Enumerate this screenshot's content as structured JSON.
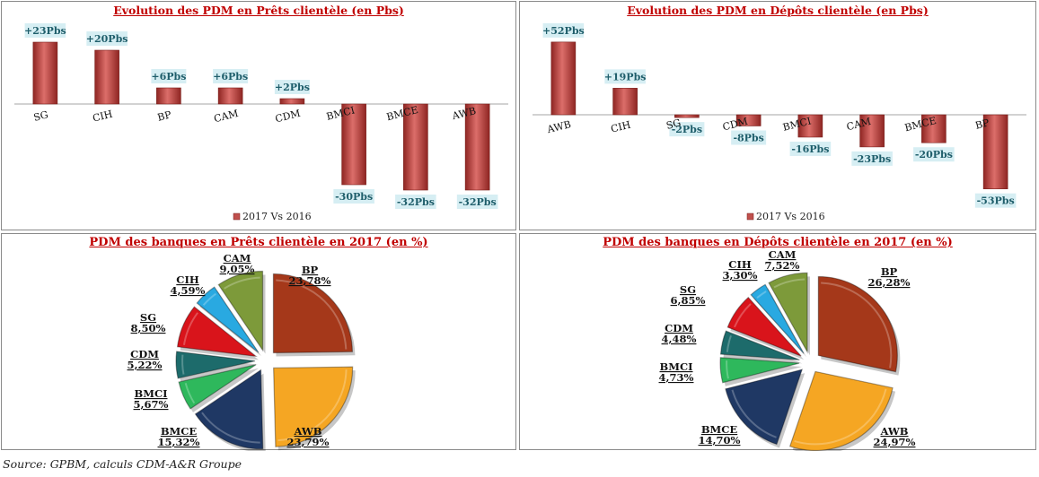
{
  "footer": {
    "source": "Source: GPBM, calculs CDM-A&R Groupe"
  },
  "chart_data": [
    {
      "type": "bar",
      "title": "Evolution des PDM en Prêts clientèle (en Pbs)",
      "categories": [
        "SG",
        "CIH",
        "BP",
        "CAM",
        "CDM",
        "BMCI",
        "BMCE",
        "AWB"
      ],
      "values": [
        23,
        20,
        6,
        6,
        2,
        -30,
        -32,
        -32
      ],
      "data_labels": [
        "+23Pbs",
        "+20Pbs",
        "+6Pbs",
        "+6Pbs",
        "+2Pbs",
        "-30Pbs",
        "-32Pbs",
        "-32Pbs"
      ],
      "series": [
        {
          "name": "2017 Vs 2016",
          "values": [
            23,
            20,
            6,
            6,
            2,
            -30,
            -32,
            -32
          ]
        }
      ],
      "legend": "bottom",
      "grid": false,
      "color": "#c0504d"
    },
    {
      "type": "bar",
      "title": "Evolution des PDM en Dépôts clientèle (en Pbs)",
      "categories": [
        "AWB",
        "CIH",
        "SG",
        "CDM",
        "BMCI",
        "CAM",
        "BMCE",
        "BP"
      ],
      "values": [
        52,
        19,
        -2,
        -8,
        -16,
        -23,
        -20,
        -53
      ],
      "data_labels": [
        "+52Pbs",
        "+19Pbs",
        "-2Pbs",
        "-8Pbs",
        "-16Pbs",
        "-23Pbs",
        "-20Pbs",
        "-53Pbs"
      ],
      "series": [
        {
          "name": "2017 Vs 2016",
          "values": [
            52,
            19,
            -2,
            -8,
            -16,
            -23,
            -20,
            -53
          ]
        }
      ],
      "legend": "bottom",
      "grid": false,
      "color": "#c0504d"
    },
    {
      "type": "pie",
      "title": "PDM des banques en Prêts clientèle en 2017 (en %)",
      "slices": [
        {
          "label": "BP",
          "value": 23.78,
          "text": "23,78%",
          "color": "#a5381a"
        },
        {
          "label": "AWB",
          "value": 23.79,
          "text": "23,79%",
          "color": "#f5a623"
        },
        {
          "label": "BMCE",
          "value": 15.32,
          "text": "15,32%",
          "color": "#1f3864"
        },
        {
          "label": "BMCI",
          "value": 5.67,
          "text": "5,67%",
          "color": "#2eb85c"
        },
        {
          "label": "CDM",
          "value": 5.22,
          "text": "5,22%",
          "color": "#1d6b6b"
        },
        {
          "label": "SG",
          "value": 8.5,
          "text": "8,50%",
          "color": "#d9141b"
        },
        {
          "label": "CIH",
          "value": 4.59,
          "text": "4,59%",
          "color": "#29a9e1"
        },
        {
          "label": "CAM",
          "value": 9.05,
          "text": "9,05%",
          "color": "#7d9a3a"
        }
      ]
    },
    {
      "type": "pie",
      "title": "PDM des banques en Dépôts clientèle en 2017 (en %)",
      "slices": [
        {
          "label": "BP",
          "value": 26.28,
          "text": "26,28%",
          "color": "#a5381a"
        },
        {
          "label": "AWB",
          "value": 24.97,
          "text": "24,97%",
          "color": "#f5a623"
        },
        {
          "label": "BMCE",
          "value": 14.7,
          "text": "14,70%",
          "color": "#1f3864"
        },
        {
          "label": "BMCI",
          "value": 4.73,
          "text": "4,73%",
          "color": "#2eb85c"
        },
        {
          "label": "CDM",
          "value": 4.48,
          "text": "4,48%",
          "color": "#1d6b6b"
        },
        {
          "label": "SG",
          "value": 6.85,
          "text": "6,85%",
          "color": "#d9141b"
        },
        {
          "label": "CIH",
          "value": 3.3,
          "text": "3,30%",
          "color": "#29a9e1"
        },
        {
          "label": "CAM",
          "value": 7.52,
          "text": "7,52%",
          "color": "#7d9a3a"
        }
      ]
    }
  ]
}
